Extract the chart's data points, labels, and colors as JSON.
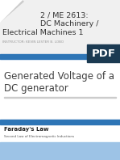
{
  "bg_color": "#ffffff",
  "header_bg": "#f0f0f0",
  "title_line1": "2 / ME 2613:",
  "title_line2": "DC Machinery /",
  "title_line3": "Electrical Machines 1",
  "instructor": "INSTRUCTOR: KEVIN LESTER B. LOBO",
  "pdf_label": "PDF",
  "pdf_bg": "#1b3a52",
  "pdf_text_color": "#ffffff",
  "blue_bar_color": "#2e75b6",
  "slide_title_line1": "Generated Voltage of a",
  "slide_title_line2": "DC generator",
  "section_label": "Faraday's Law",
  "section_sub": "Second Law of Electromagnetic Inductions",
  "section_highlight_color": "#9dc3e6",
  "divider_color": "#cccccc",
  "title_fontsize": 6.8,
  "instructor_fontsize": 3.0,
  "slide_title_fontsize": 8.5,
  "section_label_fontsize": 5.0,
  "section_sub_fontsize": 3.0,
  "fold_color": "#cccccc"
}
